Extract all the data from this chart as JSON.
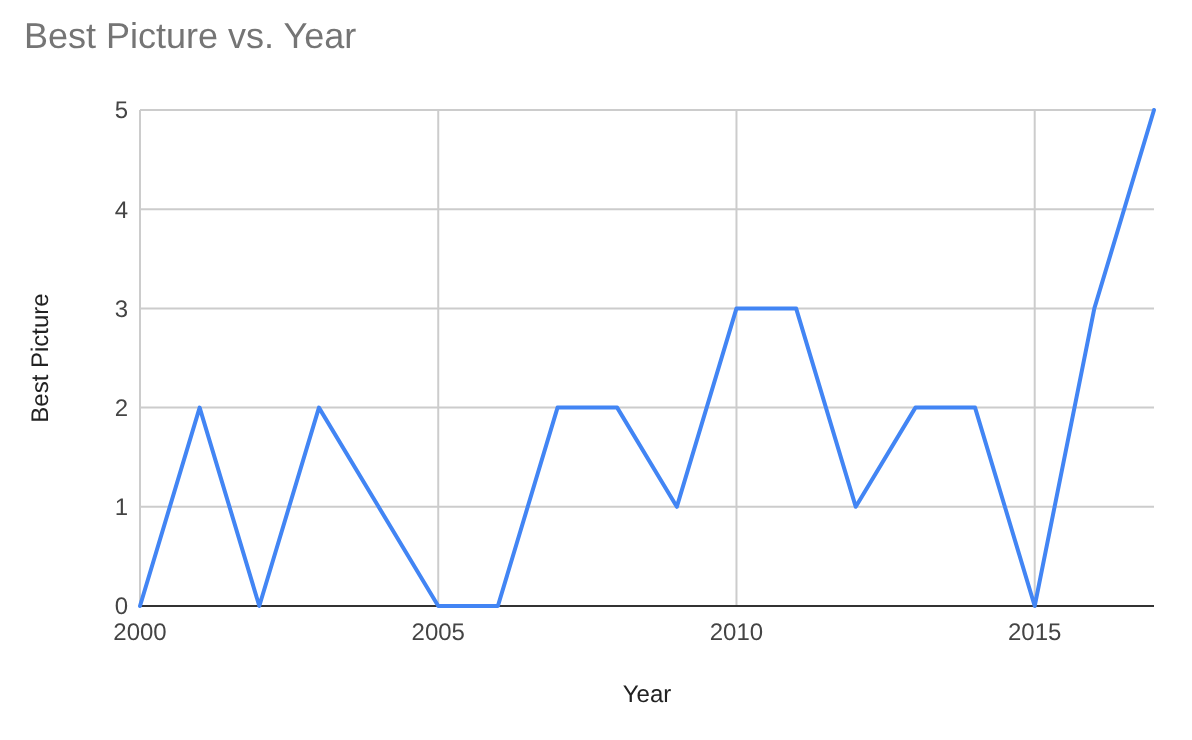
{
  "chart_data": {
    "type": "line",
    "title": "Best Picture vs. Year",
    "xlabel": "Year",
    "ylabel": "Best Picture",
    "x": [
      2000,
      2001,
      2002,
      2003,
      2004,
      2005,
      2006,
      2007,
      2008,
      2009,
      2010,
      2011,
      2012,
      2013,
      2014,
      2015,
      2016,
      2017
    ],
    "series": [
      {
        "color": "#4285f4",
        "values": [
          0,
          2,
          0,
          2,
          1,
          0,
          0,
          2,
          2,
          1,
          3,
          3,
          1,
          2,
          2,
          0,
          3,
          5
        ]
      }
    ],
    "xlim": [
      2000,
      2017
    ],
    "xticks": [
      2000,
      2005,
      2010,
      2015
    ],
    "ylim": [
      0,
      5
    ],
    "yticks": [
      0,
      1,
      2,
      3,
      4,
      5
    ],
    "grid": true,
    "marker": "none",
    "line_style": "solid"
  }
}
